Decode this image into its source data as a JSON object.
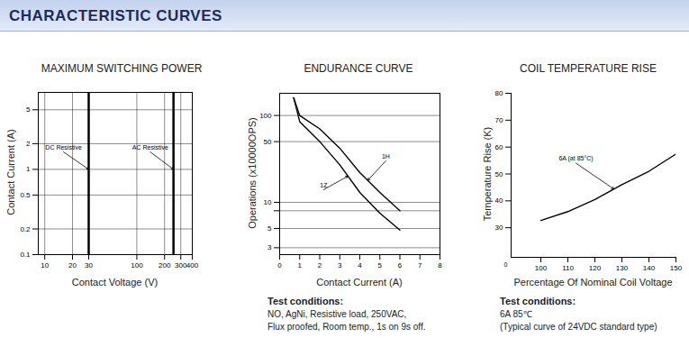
{
  "header": "CHARACTERISTIC CURVES",
  "chart_data": [
    {
      "type": "line",
      "title": "MAXIMUM SWITCHING POWER",
      "x_label": "Contact Voltage (V)",
      "y_label": "Contact Current (A)",
      "log": true,
      "grid": true,
      "color": "#000000",
      "xlim": [
        8.5,
        400
      ],
      "xticks": [
        10,
        20,
        30,
        100,
        200,
        300,
        400
      ],
      "ylim": [
        0.1,
        8
      ],
      "yticks": [
        0.1,
        0.2,
        0.5,
        1,
        2,
        5
      ],
      "series": [
        {
          "name": "DC Resistive",
          "x": [
            30,
            30
          ],
          "values": [
            0.1,
            8
          ],
          "label_at": [
            16,
            1.6
          ],
          "arrow_to": [
            30,
            1.0
          ]
        },
        {
          "name": "AC Resistive",
          "x": [
            250,
            250
          ],
          "values": [
            0.1,
            8
          ],
          "label_at": [
            140,
            1.6
          ],
          "arrow_to": [
            250,
            1.0
          ]
        }
      ]
    },
    {
      "type": "line",
      "title": "ENDURANCE CURVE",
      "x_label": "Contact Current (A)",
      "y_label": "Operations (x10000OPS)",
      "log": "y",
      "grid": "y",
      "color": "#000000",
      "xlim": [
        0,
        8
      ],
      "xticks": [
        0,
        1,
        2,
        3,
        4,
        5,
        6,
        7,
        8
      ],
      "ylim": [
        2.5,
        180
      ],
      "yticks": [
        3,
        5,
        8,
        10,
        50,
        100
      ],
      "x": [
        0.7,
        1,
        2,
        3,
        4,
        5,
        6
      ],
      "series": [
        {
          "name": "1H",
          "values": [
            160,
            100,
            70,
            42,
            22,
            13,
            8
          ],
          "label_at": [
            5.3,
            30
          ],
          "arrow_to": [
            4.4,
            18
          ]
        },
        {
          "name": "1Z",
          "values": [
            160,
            85,
            50,
            27,
            13,
            7.5,
            4.8
          ],
          "label_at": [
            2.2,
            14
          ],
          "arrow_to": [
            3.4,
            20
          ]
        }
      ],
      "caption": {
        "heading": "Test conditions:",
        "lines": [
          "NO, AgNi, Resistive load, 250VAC,",
          "Flux proofed, Room temp., 1s on 9s off."
        ]
      }
    },
    {
      "type": "line",
      "title": "COIL TEMPERATURE RISE",
      "x_label": "Percentage Of Nominal Coil Voltage",
      "y_label": "Temperature Rise (K)",
      "grid": false,
      "color": "#000000",
      "xlim": [
        89,
        150
      ],
      "xticks": [
        100,
        110,
        120,
        130,
        140,
        150
      ],
      "ylim": [
        19,
        80
      ],
      "yticks": [
        30,
        40,
        50,
        60,
        70,
        80
      ],
      "origin_label": "0",
      "x": [
        100,
        110,
        120,
        130,
        140,
        150
      ],
      "series": [
        {
          "name": "6A (at 85°C)",
          "values": [
            32.7,
            36,
            40.5,
            46,
            51,
            57.4
          ],
          "label_at": [
            113,
            54
          ],
          "arrow_to": [
            127,
            44.4
          ]
        }
      ],
      "caption": {
        "heading": "Test conditions:",
        "lines": [
          "6A  85℃",
          "(Typical curve of 24VDC standard type)"
        ]
      }
    }
  ]
}
